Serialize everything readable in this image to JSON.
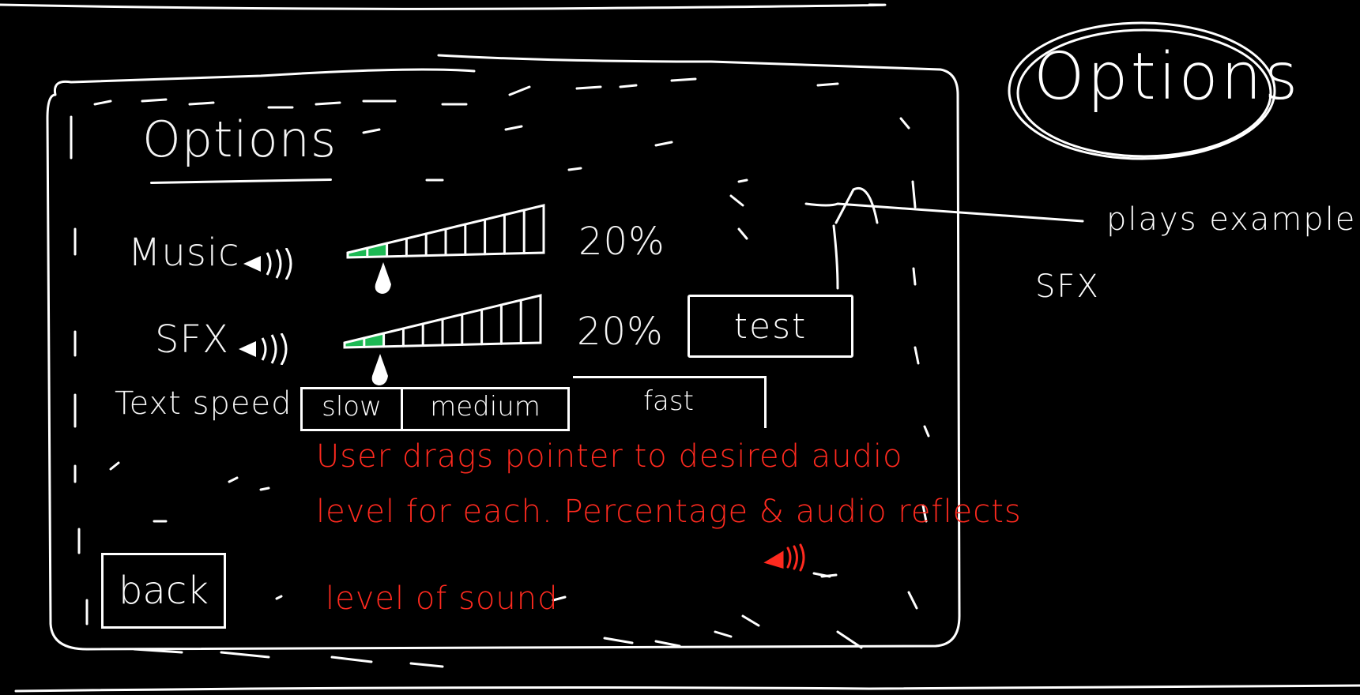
{
  "page": {
    "title": "Options",
    "side_title": "Options"
  },
  "audio": {
    "music": {
      "label": "Music",
      "level_percent": 20,
      "display": "20%"
    },
    "sfx": {
      "label": "SFX",
      "level_percent": 20,
      "display": "20%",
      "test_label": "test"
    }
  },
  "text_speed": {
    "label": "Text speed",
    "options": [
      "slow",
      "medium",
      "fast"
    ]
  },
  "back_label": "back",
  "notes": {
    "line1": "User drags pointer to desired audio",
    "line2": "level for each. Percentage & audio reflects",
    "line3": "level of sound"
  },
  "annotation": {
    "line1": "plays example",
    "line2": "SFX"
  },
  "colors": {
    "background": "#000000",
    "stroke": "#ffffff",
    "slider_fill": "#1db954",
    "note_red": "#ff2a1f"
  }
}
